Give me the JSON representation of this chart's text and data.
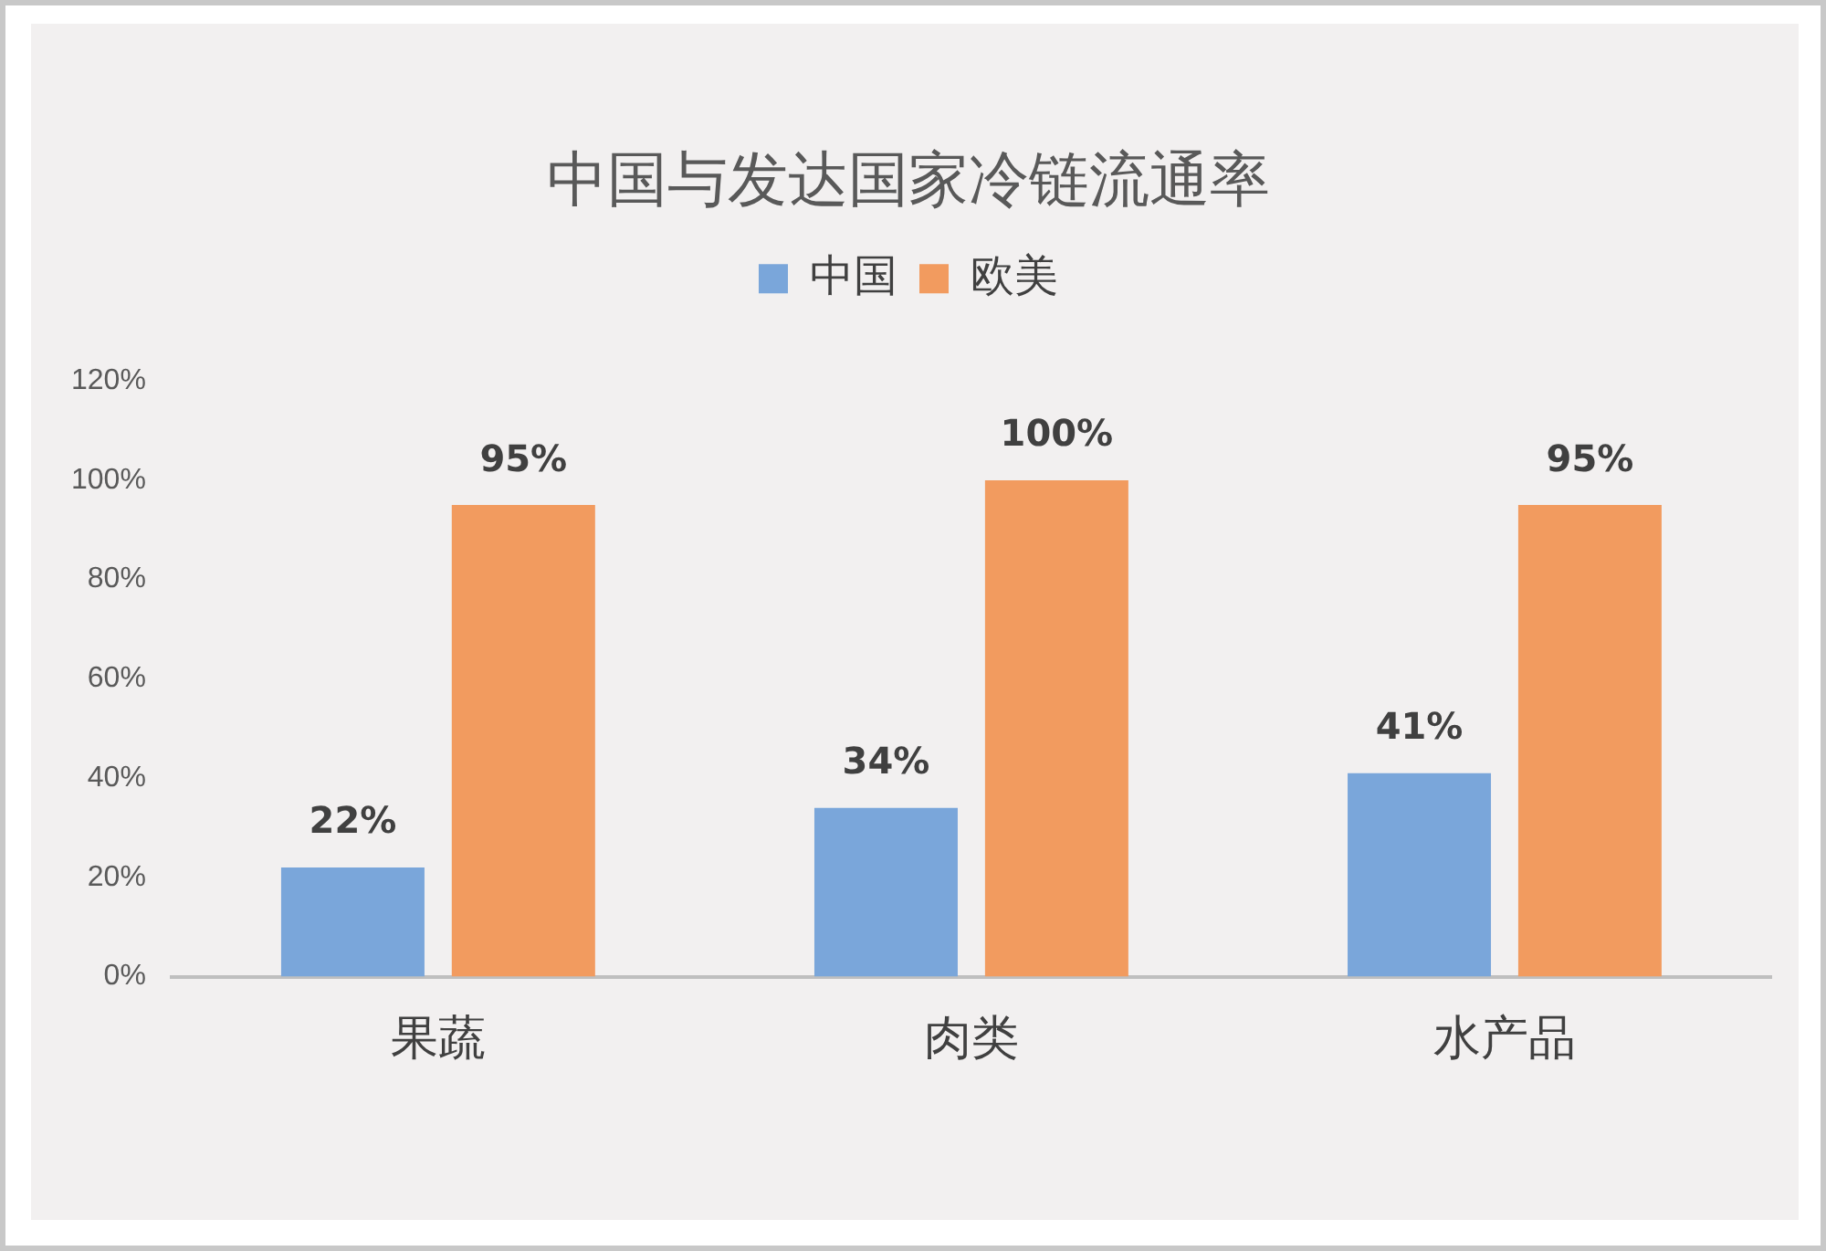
{
  "chart_data": {
    "type": "bar",
    "title": "中国与发达国家冷链流通率",
    "categories": [
      "果蔬",
      "肉类",
      "水产品"
    ],
    "series": [
      {
        "name": "中国",
        "color": "#7aa6da",
        "values": [
          22,
          34,
          41
        ],
        "value_labels": [
          "22%",
          "34%",
          "41%"
        ]
      },
      {
        "name": "欧美",
        "color": "#f29b5f",
        "values": [
          95,
          100,
          95
        ],
        "value_labels": [
          "95%",
          "100%",
          "95%"
        ]
      }
    ],
    "ylim": [
      0,
      120
    ],
    "yticks": [
      {
        "value": 0,
        "label": "0%"
      },
      {
        "value": 20,
        "label": "20%"
      },
      {
        "value": 40,
        "label": "40%"
      },
      {
        "value": 60,
        "label": "60%"
      },
      {
        "value": 80,
        "label": "80%"
      },
      {
        "value": 100,
        "label": "100%"
      },
      {
        "value": 120,
        "label": "120%"
      }
    ],
    "grid": false,
    "legend": "top"
  }
}
